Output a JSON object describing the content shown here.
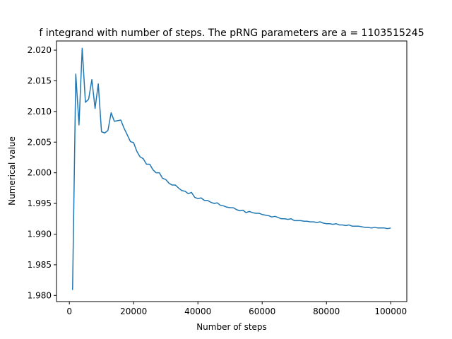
{
  "chart_data": {
    "type": "line",
    "title": "f integrand with number of steps. The pRNG parameters are a = 1103515245",
    "xlabel": "Number of steps",
    "ylabel": "Numerical value",
    "xlim": [
      -4000,
      105000
    ],
    "ylim": [
      1.979,
      2.0215
    ],
    "xticks": [
      0,
      20000,
      40000,
      60000,
      80000,
      100000
    ],
    "xtick_labels": [
      "0",
      "20000",
      "40000",
      "60000",
      "80000",
      "100000"
    ],
    "yticks": [
      1.98,
      1.985,
      1.99,
      1.995,
      2.0,
      2.005,
      2.01,
      2.015,
      2.02
    ],
    "ytick_labels": [
      "1.980",
      "1.985",
      "1.990",
      "1.995",
      "2.000",
      "2.005",
      "2.010",
      "2.015",
      "2.020"
    ],
    "grid": false,
    "series": [
      {
        "color": "#1f77b4",
        "x": [
          1000,
          2000,
          3000,
          4000,
          5000,
          6000,
          7000,
          8000,
          9000,
          10000,
          11000,
          12000,
          13000,
          14000,
          15000,
          16000,
          17000,
          18000,
          19000,
          20000,
          21000,
          22000,
          23000,
          24000,
          25000,
          26000,
          27000,
          28000,
          29000,
          30000,
          31000,
          32000,
          33000,
          34000,
          35000,
          36000,
          37000,
          38000,
          39000,
          40000,
          41000,
          42000,
          43000,
          44000,
          45000,
          46000,
          47000,
          48000,
          49000,
          50000,
          51000,
          52000,
          53000,
          54000,
          55000,
          56000,
          57000,
          58000,
          59000,
          60000,
          61000,
          62000,
          63000,
          64000,
          65000,
          66000,
          67000,
          68000,
          69000,
          70000,
          71000,
          72000,
          73000,
          74000,
          75000,
          76000,
          77000,
          78000,
          79000,
          80000,
          81000,
          82000,
          83000,
          84000,
          85000,
          86000,
          87000,
          88000,
          89000,
          90000,
          91000,
          92000,
          93000,
          94000,
          95000,
          96000,
          97000,
          98000,
          99000,
          100000
        ],
        "y": [
          1.9809,
          2.0161,
          2.0078,
          2.0203,
          2.0115,
          2.012,
          2.0152,
          2.0105,
          2.0145,
          2.0067,
          2.0065,
          2.0069,
          2.0098,
          2.0084,
          2.0085,
          2.0086,
          2.0073,
          2.0062,
          2.0051,
          2.0049,
          2.0035,
          2.0026,
          2.0023,
          2.0014,
          2.0014,
          2.0005,
          2.0,
          2.0,
          1.9991,
          1.9989,
          1.9983,
          1.998,
          1.998,
          1.9975,
          1.9971,
          1.997,
          1.9966,
          1.9968,
          1.996,
          1.9958,
          1.9959,
          1.9955,
          1.9955,
          1.9952,
          1.995,
          1.9951,
          1.9947,
          1.9946,
          1.9944,
          1.9943,
          1.9943,
          1.994,
          1.9938,
          1.9939,
          1.9935,
          1.9937,
          1.9935,
          1.9934,
          1.9934,
          1.9932,
          1.9931,
          1.993,
          1.9928,
          1.9929,
          1.9927,
          1.9925,
          1.9925,
          1.9924,
          1.9925,
          1.9922,
          1.9922,
          1.9922,
          1.9921,
          1.9921,
          1.992,
          1.992,
          1.9919,
          1.992,
          1.9918,
          1.9917,
          1.9917,
          1.9916,
          1.9917,
          1.9915,
          1.9915,
          1.9914,
          1.9915,
          1.9913,
          1.9913,
          1.9913,
          1.9912,
          1.9911,
          1.9911,
          1.991,
          1.9911,
          1.991,
          1.991,
          1.991,
          1.9909,
          1.991
        ]
      }
    ]
  }
}
